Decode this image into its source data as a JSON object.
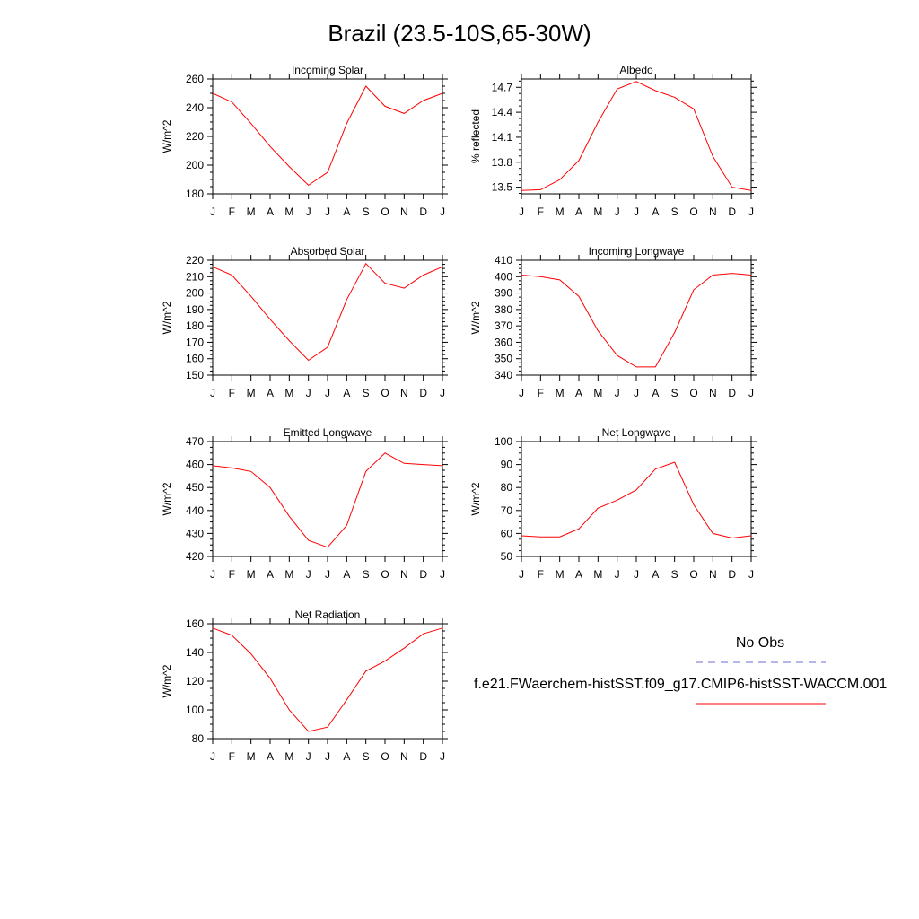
{
  "title": "Brazil (23.5-10S,65-30W)",
  "month_labels": [
    "J",
    "F",
    "M",
    "A",
    "M",
    "J",
    "J",
    "A",
    "S",
    "O",
    "N",
    "D",
    "J"
  ],
  "legend": {
    "obs_label": "No Obs",
    "model_label": "f.e21.FWaerchem-histSST.f09_g17.CMIP6-histSST-WACCM.001",
    "obs_color": "#6b6bd6",
    "model_color": "#ff0000"
  },
  "chart_data": [
    {
      "type": "line",
      "title": "Incoming Solar",
      "ylabel": "W/m^2",
      "categories": [
        "J",
        "F",
        "M",
        "A",
        "M",
        "J",
        "J",
        "A",
        "S",
        "O",
        "N",
        "D",
        "J"
      ],
      "ylim": [
        180,
        260
      ],
      "yticks": [
        180,
        200,
        220,
        240,
        260
      ],
      "values": [
        250,
        244,
        229,
        213,
        199,
        186,
        195,
        229,
        255,
        241,
        236,
        245,
        250
      ]
    },
    {
      "type": "line",
      "title": "Albedo",
      "ylabel": "% reflected",
      "categories": [
        "J",
        "F",
        "M",
        "A",
        "M",
        "J",
        "J",
        "A",
        "S",
        "O",
        "N",
        "D",
        "J"
      ],
      "ylim": [
        13.42,
        14.8
      ],
      "yticks": [
        13.5,
        13.8,
        14.1,
        14.4,
        14.7
      ],
      "values": [
        13.46,
        13.47,
        13.59,
        13.82,
        14.28,
        14.68,
        14.77,
        14.66,
        14.58,
        14.44,
        13.87,
        13.5,
        13.46
      ]
    },
    {
      "type": "line",
      "title": "Absorbed Solar",
      "ylabel": "W/m^2",
      "categories": [
        "J",
        "F",
        "M",
        "A",
        "M",
        "J",
        "J",
        "A",
        "S",
        "O",
        "N",
        "D",
        "J"
      ],
      "ylim": [
        150,
        220
      ],
      "yticks": [
        150,
        160,
        170,
        180,
        190,
        200,
        210,
        220
      ],
      "values": [
        216,
        211,
        198,
        184,
        171,
        159,
        167,
        196,
        218,
        206,
        203,
        211,
        216
      ]
    },
    {
      "type": "line",
      "title": "Incoming Longwave",
      "ylabel": "W/m^2",
      "categories": [
        "J",
        "F",
        "M",
        "A",
        "M",
        "J",
        "J",
        "A",
        "S",
        "O",
        "N",
        "D",
        "J"
      ],
      "ylim": [
        340,
        410
      ],
      "yticks": [
        340,
        350,
        360,
        370,
        380,
        390,
        400,
        410
      ],
      "values": [
        401,
        400,
        398,
        388,
        367,
        352,
        345,
        345,
        366,
        392,
        401,
        402,
        401
      ]
    },
    {
      "type": "line",
      "title": "Emitted Longwave",
      "ylabel": "W/m^2",
      "categories": [
        "J",
        "F",
        "M",
        "A",
        "M",
        "J",
        "J",
        "A",
        "S",
        "O",
        "N",
        "D",
        "J"
      ],
      "ylim": [
        420,
        470
      ],
      "yticks": [
        420,
        430,
        440,
        450,
        460,
        470
      ],
      "values": [
        459.5,
        458.5,
        457,
        450,
        437.5,
        427,
        424,
        433.5,
        457,
        465,
        460.5,
        460,
        459.5
      ]
    },
    {
      "type": "line",
      "title": "Net Longwave",
      "ylabel": "W/m^2",
      "categories": [
        "J",
        "F",
        "M",
        "A",
        "M",
        "J",
        "J",
        "A",
        "S",
        "O",
        "N",
        "D",
        "J"
      ],
      "ylim": [
        50,
        100
      ],
      "yticks": [
        50,
        60,
        70,
        80,
        90,
        100
      ],
      "values": [
        59,
        58.5,
        58.5,
        62,
        71,
        74.5,
        79,
        88,
        91,
        72.5,
        60,
        58,
        59
      ]
    },
    {
      "type": "line",
      "title": "Net Radiation",
      "ylabel": "W/m^2",
      "categories": [
        "J",
        "F",
        "M",
        "A",
        "M",
        "J",
        "J",
        "A",
        "S",
        "O",
        "N",
        "D",
        "J"
      ],
      "ylim": [
        80,
        160
      ],
      "yticks": [
        80,
        100,
        120,
        140,
        160
      ],
      "values": [
        157,
        152,
        139,
        122,
        100,
        85,
        88,
        107,
        127,
        134,
        143,
        153,
        157
      ]
    }
  ]
}
